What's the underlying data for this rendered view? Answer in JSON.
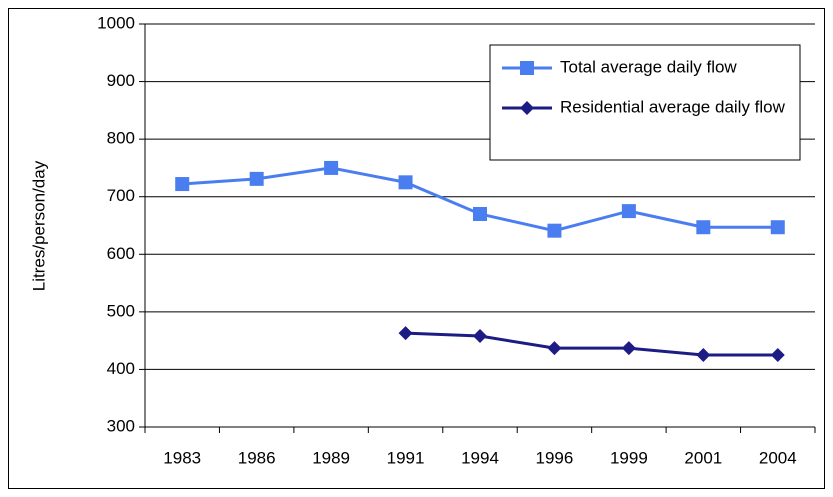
{
  "chart_data": {
    "type": "line",
    "y_label": "Litres/person/day",
    "categories": [
      "1983",
      "1986",
      "1989",
      "1991",
      "1994",
      "1996",
      "1999",
      "2001",
      "2004"
    ],
    "series": [
      {
        "name": "Total average daily flow",
        "color": "#4a7ef0",
        "marker": "square",
        "values": [
          722,
          731,
          750,
          725,
          670,
          641,
          675,
          647,
          647
        ]
      },
      {
        "name": "Residential average daily flow",
        "color": "#1c1c84",
        "marker": "diamond",
        "values": [
          null,
          null,
          null,
          463,
          458,
          437,
          437,
          425,
          425
        ]
      }
    ],
    "ylim": [
      300,
      1000
    ],
    "yticks": [
      300,
      400,
      500,
      600,
      700,
      800,
      900,
      1000
    ],
    "grid": true,
    "legend": "top-right"
  }
}
